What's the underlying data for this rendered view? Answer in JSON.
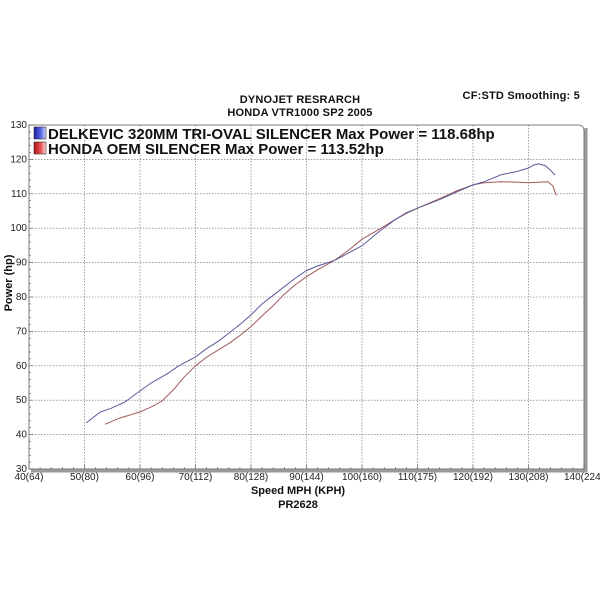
{
  "header": {
    "title_line1": "DYNOJET RESRARCH",
    "title_line2": "HONDA VTR1000 SP2 2005",
    "correction_info": "CF:STD Smoothing: 5"
  },
  "footer": {
    "run_id": "PR2628"
  },
  "colors": {
    "delkevic": "#5a5a96",
    "oem": "#a05a5a",
    "grid": "#666666",
    "frame": "#8a8a8a"
  },
  "chart_data": {
    "type": "line",
    "title": "DYNOJET RESRARCH - HONDA VTR1000 SP2 2005",
    "subtitle": "CF:STD Smoothing: 5",
    "xlabel": "Speed MPH (KPH)",
    "ylabel": "Power (hp)",
    "xlim": [
      40,
      140
    ],
    "ylim": [
      30,
      130
    ],
    "grid": true,
    "legend_position": "top-left inside",
    "x_tick_labels": [
      "40(64)",
      "50(80)",
      "60(96)",
      "70(112)",
      "80(128)",
      "90(144)",
      "100(160)",
      "110(175)",
      "120(192)",
      "130(208)",
      "140(224)"
    ],
    "y_tick_labels": [
      "30",
      "40",
      "50",
      "60",
      "70",
      "80",
      "90",
      "100",
      "110",
      "120",
      "130"
    ],
    "series": [
      {
        "name": "DELKEVIC 320MM TRI-OVAL SILENCER  Max Power = 118.68hp",
        "max_power_hp": 118.68,
        "x": [
          50.3,
          52.8,
          55,
          57.3,
          60,
          62,
          65,
          67,
          70,
          72,
          74,
          76.2,
          78,
          80,
          82,
          84,
          86,
          88,
          90,
          92,
          95,
          97,
          100,
          103.2,
          106,
          108,
          110,
          114,
          117,
          120,
          122,
          125,
          128,
          130,
          131,
          131.8,
          133,
          134,
          134.8
        ],
        "values": [
          43.4,
          46.5,
          47.8,
          49.5,
          52.7,
          55,
          57.8,
          60,
          62.6,
          65,
          67,
          69.7,
          72,
          74.8,
          78,
          80.5,
          83,
          85.5,
          87.7,
          89,
          90.6,
          92.3,
          94.9,
          99.2,
          102.5,
          104.5,
          105.8,
          108.3,
          110.5,
          112.6,
          113.5,
          115.5,
          116.5,
          117.5,
          118.4,
          118.68,
          118.2,
          116.8,
          115.4
        ]
      },
      {
        "name": "HONDA OEM SILENCER Max Power = 113.52hp",
        "max_power_hp": 113.52,
        "x": [
          53.7,
          56.3,
          58,
          60,
          62,
          64,
          66,
          68,
          70,
          72,
          74,
          76.2,
          78,
          80,
          82,
          84,
          86,
          88,
          90,
          92,
          95,
          97.5,
          100,
          103.2,
          106,
          108,
          110,
          114,
          117,
          120,
          122,
          125,
          128,
          130,
          132,
          133.5,
          134.4,
          135
        ],
        "values": [
          43,
          44.8,
          45.6,
          46.6,
          48,
          49.8,
          53,
          56.8,
          60,
          62.5,
          64.5,
          66.7,
          68.8,
          71.4,
          74.5,
          77.5,
          80.8,
          83.6,
          85.9,
          87.9,
          90.6,
          93.5,
          96.8,
          99.8,
          102.5,
          104.3,
          105.8,
          108.6,
          110.8,
          112.6,
          113.2,
          113.5,
          113.4,
          113.2,
          113.4,
          113.5,
          112.3,
          109.5
        ]
      }
    ]
  }
}
